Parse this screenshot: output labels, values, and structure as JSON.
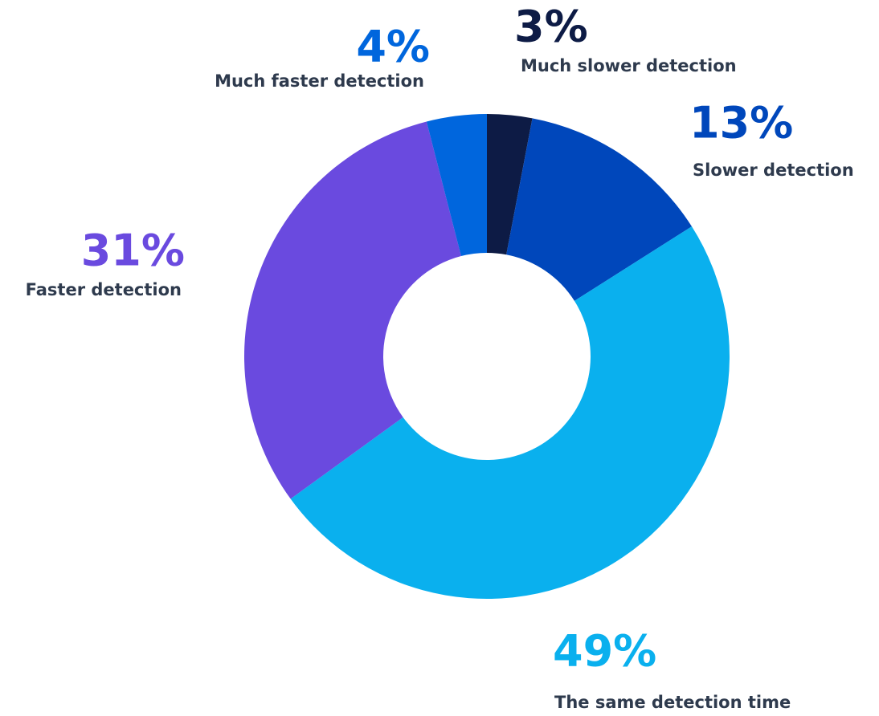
{
  "chart_data": {
    "type": "donut",
    "categories": [
      "Much slower detection",
      "Slower detection",
      "The same detection time",
      "Faster detection",
      "Much faster detection"
    ],
    "values": [
      3,
      13,
      49,
      31,
      4
    ],
    "value_labels": [
      "3%",
      "13%",
      "49%",
      "31%",
      "4%"
    ],
    "colors": [
      "#0d1b45",
      "#0047bb",
      "#0ab0ee",
      "#6a4adf",
      "#0066dd"
    ]
  }
}
